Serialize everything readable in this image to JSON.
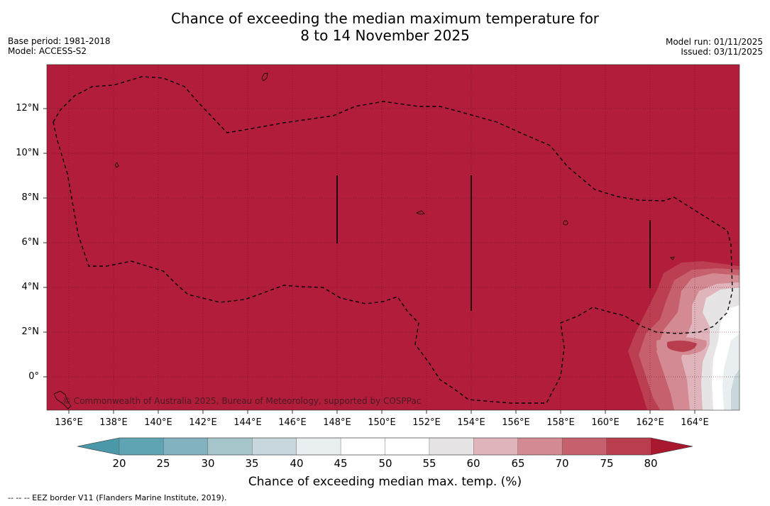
{
  "title": {
    "line1": "Chance of exceeding the median maximum temperature for",
    "line2": "8 to 14 November 2025"
  },
  "meta_left": {
    "base_period": "Base period: 1981-2018",
    "model": "Model: ACCESS-S2"
  },
  "meta_right": {
    "model_run": "Model run: 01/11/2025",
    "issued": "Issued: 03/11/2025"
  },
  "map": {
    "lat_ticks": [
      "12°N",
      "10°N",
      "8°N",
      "6°N",
      "4°N",
      "2°N",
      "0°"
    ],
    "lon_ticks": [
      "136°E",
      "138°E",
      "140°E",
      "142°E",
      "144°E",
      "146°E",
      "148°E",
      "150°E",
      "152°E",
      "154°E",
      "156°E",
      "158°E",
      "160°E",
      "162°E",
      "164°E"
    ],
    "copyright": "© Commonwealth of Australia 2025, Bureau of Meteorology, supported by COSPPac",
    "dominant_fill_color": "#b11d3b",
    "border_label": "EEZ border"
  },
  "colorbar": {
    "ticks": [
      "20",
      "25",
      "30",
      "35",
      "40",
      "45",
      "50",
      "55",
      "60",
      "65",
      "70",
      "75",
      "80"
    ],
    "colors": [
      "#5fa4b3",
      "#82b2c0",
      "#a6c5cb",
      "#c8d7dc",
      "#e9eff1",
      "#ffffff",
      "#ffffff",
      "#e6e4e5",
      "#dfb4ba",
      "#d48a92",
      "#c6606c",
      "#b83e4e",
      "#b11d3b"
    ],
    "low_end_color": "#4a98a8",
    "high_end_color": "#a8182f",
    "title": "Chance of exceeding median max. temp. (%)"
  },
  "footnote": "--  --  -- EEZ border V11 (Flanders Marine Institute, 2019)."
}
